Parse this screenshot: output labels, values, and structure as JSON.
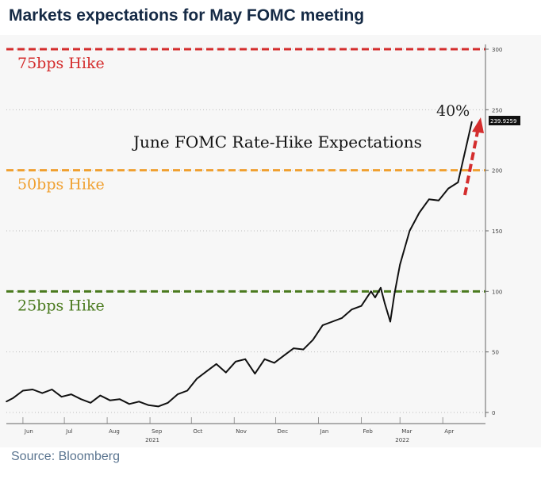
{
  "header": {
    "title": "Markets expectations for May FOMC meeting"
  },
  "footer": {
    "source": "Source: Bloomberg"
  },
  "chart_data": {
    "type": "line",
    "title": "June FOMC Rate-Hike Expectations",
    "ylim": [
      0,
      300
    ],
    "yticks": [
      0,
      50,
      100,
      150,
      200,
      250,
      300
    ],
    "grid": true,
    "x_ticks": [
      "Jun",
      "Jul",
      "Aug",
      "Sep",
      "Oct",
      "Nov",
      "Dec",
      "Jan",
      "Feb",
      "Mar",
      "Apr"
    ],
    "x_year_labels": [
      "2021",
      "2022"
    ],
    "reference_lines": [
      {
        "label": "75bps Hike",
        "y": 300,
        "color": "#d42d2d"
      },
      {
        "label": "50bps Hike",
        "y": 200,
        "color": "#f0a030"
      },
      {
        "label": "25bps Hike",
        "y": 100,
        "color": "#4a7a1e"
      }
    ],
    "annotations": {
      "percent": "40%",
      "last_value": "239.9259"
    },
    "series": [
      {
        "x": [
          "2021-05-20",
          "2021-05-25",
          "2021-06-01",
          "2021-06-08",
          "2021-06-15",
          "2021-06-22",
          "2021-06-29",
          "2021-07-06",
          "2021-07-13",
          "2021-07-20",
          "2021-07-27",
          "2021-08-03",
          "2021-08-10",
          "2021-08-17",
          "2021-08-24",
          "2021-08-31",
          "2021-09-07",
          "2021-09-14",
          "2021-09-21",
          "2021-09-28",
          "2021-10-05",
          "2021-10-12",
          "2021-10-19",
          "2021-10-26",
          "2021-11-02",
          "2021-11-09",
          "2021-11-16",
          "2021-11-23",
          "2021-11-30",
          "2021-12-07",
          "2021-12-14",
          "2021-12-21",
          "2021-12-28",
          "2022-01-04",
          "2022-01-11",
          "2022-01-18",
          "2022-01-25",
          "2022-02-01",
          "2022-02-08",
          "2022-02-11",
          "2022-02-15",
          "2022-02-18",
          "2022-02-22",
          "2022-02-25",
          "2022-03-01",
          "2022-03-08",
          "2022-03-15",
          "2022-03-22",
          "2022-03-29",
          "2022-04-05",
          "2022-04-12",
          "2022-04-19",
          "2022-04-22"
        ],
        "values": [
          9,
          12,
          18,
          19,
          16,
          19,
          13,
          15,
          11,
          8,
          14,
          10,
          11,
          7,
          9,
          6,
          5,
          8,
          15,
          18,
          28,
          34,
          40,
          33,
          42,
          44,
          32,
          44,
          41,
          47,
          53,
          52,
          60,
          72,
          75,
          78,
          85,
          88,
          100,
          95,
          103,
          90,
          75,
          98,
          122,
          150,
          165,
          176,
          175,
          185,
          190,
          225,
          240
        ]
      }
    ]
  }
}
